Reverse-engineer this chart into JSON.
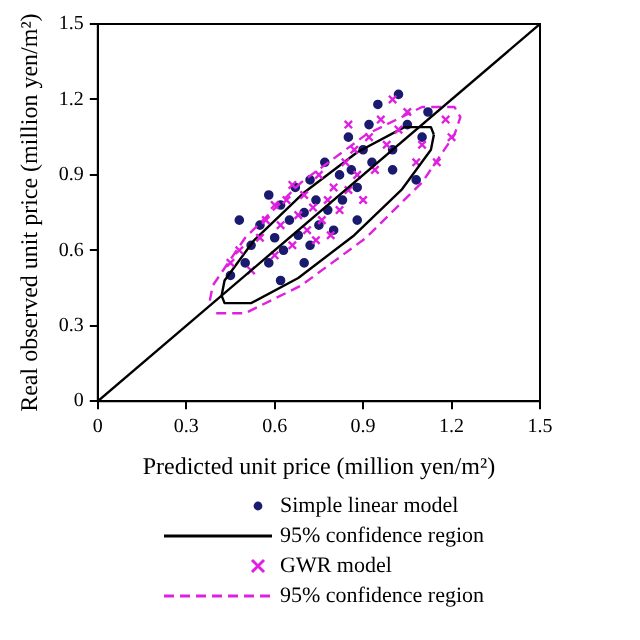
{
  "chart_data": {
    "type": "scatter",
    "xlabel": "Predicted unit price (million yen/m²)",
    "ylabel": "Real observed unit price (million yen/m²)",
    "xlim": [
      0,
      1.5
    ],
    "xticks": [
      0,
      0.3,
      0.6,
      0.9,
      1.2,
      1.5
    ],
    "ylim": [
      0,
      1.5
    ],
    "yticks": [
      0,
      0.3,
      0.6,
      0.9,
      1.2,
      1.5
    ],
    "legend": "bottom",
    "series": [
      {
        "name": "Simple linear model",
        "type": "scatter",
        "marker": "circle",
        "color": "#1a1a6e",
        "x": [
          0.45,
          0.5,
          0.52,
          0.55,
          0.58,
          0.6,
          0.62,
          0.63,
          0.65,
          0.67,
          0.68,
          0.7,
          0.72,
          0.72,
          0.74,
          0.75,
          0.77,
          0.78,
          0.8,
          0.82,
          0.83,
          0.85,
          0.86,
          0.88,
          0.9,
          0.92,
          0.93,
          0.95,
          1.0,
          1.02,
          1.05,
          1.08,
          1.1,
          1.12,
          0.48,
          0.58,
          0.7,
          0.88,
          1.0,
          0.62
        ],
        "values": [
          0.5,
          0.55,
          0.62,
          0.7,
          0.55,
          0.65,
          0.78,
          0.6,
          0.72,
          0.85,
          0.66,
          0.75,
          0.62,
          0.88,
          0.8,
          0.7,
          0.95,
          0.76,
          0.68,
          0.9,
          0.8,
          1.05,
          0.92,
          0.85,
          1.0,
          1.1,
          0.95,
          1.18,
          1.0,
          1.22,
          1.1,
          0.88,
          1.05,
          1.15,
          0.72,
          0.82,
          0.55,
          0.72,
          0.92,
          0.48
        ]
      },
      {
        "type": "line",
        "name": "95% confidence region",
        "color": "#000000",
        "marker": "none",
        "line_style": "solid",
        "x": [
          0.42,
          0.43,
          0.53,
          0.7,
          0.88,
          1.04,
          1.13,
          1.14
        ],
        "values": [
          0.42,
          0.48,
          0.64,
          0.83,
          0.99,
          1.09,
          1.09,
          1.06
        ]
      },
      {
        "name": "GWR model",
        "type": "scatter",
        "marker": "cross",
        "color": "#e020e0",
        "x": [
          0.45,
          0.48,
          0.52,
          0.55,
          0.57,
          0.6,
          0.62,
          0.64,
          0.66,
          0.68,
          0.7,
          0.71,
          0.73,
          0.75,
          0.76,
          0.78,
          0.79,
          0.8,
          0.82,
          0.84,
          0.85,
          0.87,
          0.88,
          0.9,
          0.92,
          0.94,
          0.96,
          0.98,
          1.0,
          1.02,
          1.05,
          1.08,
          1.1,
          1.15,
          1.18,
          1.2,
          0.6,
          0.66,
          0.74,
          0.85
        ],
        "values": [
          0.55,
          0.6,
          0.52,
          0.65,
          0.72,
          0.58,
          0.7,
          0.8,
          0.62,
          0.74,
          0.82,
          0.68,
          0.77,
          0.9,
          0.72,
          0.8,
          0.66,
          0.85,
          0.76,
          0.95,
          0.84,
          1.0,
          0.9,
          0.8,
          1.05,
          0.92,
          1.12,
          1.02,
          1.2,
          1.08,
          1.15,
          0.95,
          1.02,
          0.95,
          1.12,
          1.05,
          0.78,
          0.86,
          0.64,
          1.1
        ]
      },
      {
        "type": "line",
        "name": "95% confidence region",
        "color": "#e020e0",
        "marker": "none",
        "line_style": "dashed",
        "x": [
          0.38,
          0.39,
          0.5,
          0.69,
          0.91,
          1.1,
          1.21,
          1.23,
          1.21,
          1.1,
          0.91,
          0.69,
          0.5,
          0.39
        ],
        "values": [
          0.4,
          0.46,
          0.65,
          0.87,
          1.06,
          1.17,
          1.17,
          1.13,
          1.06,
          0.87,
          0.65,
          0.46,
          0.35,
          0.35
        ]
      },
      {
        "type": "line",
        "color": "#000000",
        "marker": "none",
        "line_style": "solid",
        "x": [
          0.42,
          0.43,
          0.52,
          0.68,
          0.87,
          1.03,
          1.13,
          1.14
        ],
        "values": [
          0.42,
          0.39,
          0.39,
          0.49,
          0.66,
          0.84,
          1.0,
          1.06
        ]
      },
      {
        "type": "line",
        "color": "#000000",
        "marker": "none",
        "line_style": "solid",
        "x": [
          0,
          1.5
        ],
        "values": [
          0,
          1.5
        ]
      }
    ]
  }
}
